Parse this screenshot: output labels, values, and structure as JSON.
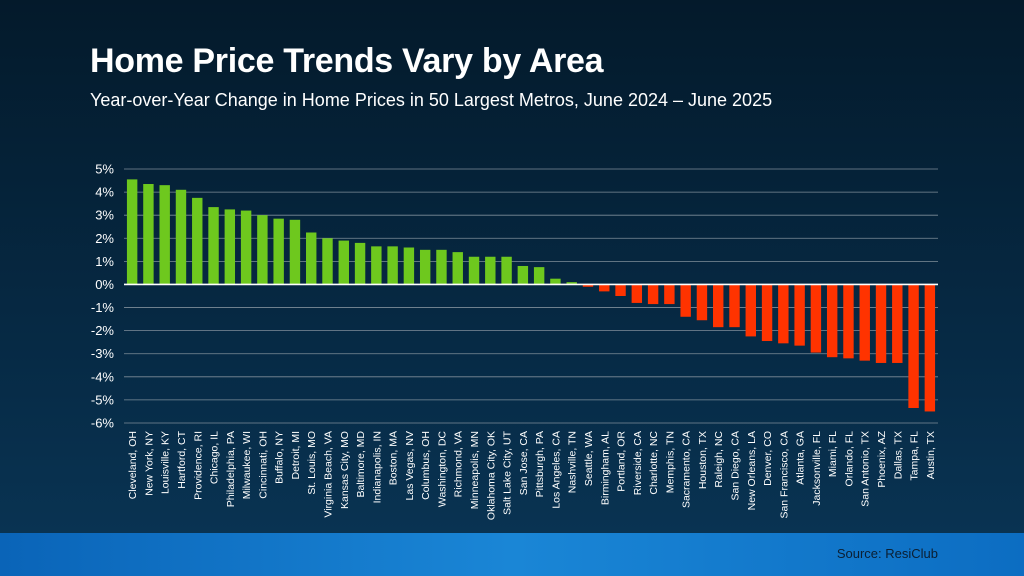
{
  "title": "Home Price Trends Vary by Area",
  "subtitle": "Year-over-Year Change in Home Prices in 50 Largest Metros, June 2024 – June 2025",
  "source": "Source: ResiClub",
  "colors": {
    "positive": "#6ec81e",
    "negative": "#ff3300",
    "grid": "#7e8d99",
    "zero_line": "#ffffff"
  },
  "chart_data": {
    "type": "bar",
    "title": "",
    "xlabel": "",
    "ylabel": "",
    "ylim": [
      -6,
      5
    ],
    "yticks": [
      5,
      4,
      3,
      2,
      1,
      0,
      -1,
      -2,
      -3,
      -4,
      -5,
      -6
    ],
    "ytick_labels": [
      "5%",
      "4%",
      "3%",
      "2%",
      "1%",
      "0%",
      "-1%",
      "-2%",
      "-3%",
      "-4%",
      "-5%",
      "-6%"
    ],
    "grid": true,
    "categories": [
      "Cleveland, OH",
      "New York, NY",
      "Louisville, KY",
      "Hartford, CT",
      "Providence, RI",
      "Chicago, IL",
      "Philadelphia, PA",
      "Milwaukee, WI",
      "Cincinnati, OH",
      "Buffalo, NY",
      "Detroit, MI",
      "St. Louis, MO",
      "Virginia Beach, VA",
      "Kansas City, MO",
      "Baltimore, MD",
      "Indianapolis, IN",
      "Boston, MA",
      "Las Vegas, NV",
      "Columbus, OH",
      "Washington, DC",
      "Richmond, VA",
      "Minneapolis, MN",
      "Oklahoma City, OK",
      "Salt Lake City, UT",
      "San Jose, CA",
      "Pittsburgh, PA",
      "Los Angeles, CA",
      "Nashville, TN",
      "Seattle, WA",
      "Birmingham, AL",
      "Portland, OR",
      "Riverside, CA",
      "Charlotte, NC",
      "Memphis, TN",
      "Sacramento, CA",
      "Houston, TX",
      "Raleigh, NC",
      "San Diego, CA",
      "New Orleans, LA",
      "Denver, CO",
      "San Francisco, CA",
      "Atlanta, GA",
      "Jacksonville, FL",
      "Miami, FL",
      "Orlando, FL",
      "San Antonio, TX",
      "Phoenix, AZ",
      "Dallas, TX",
      "Tampa, FL",
      "Austin, TX"
    ],
    "values": [
      4.55,
      4.35,
      4.3,
      4.1,
      3.75,
      3.35,
      3.25,
      3.2,
      3.0,
      2.85,
      2.8,
      2.25,
      2.0,
      1.9,
      1.8,
      1.65,
      1.65,
      1.6,
      1.5,
      1.5,
      1.4,
      1.2,
      1.2,
      1.2,
      0.8,
      0.75,
      0.25,
      0.1,
      -0.1,
      -0.3,
      -0.5,
      -0.8,
      -0.85,
      -0.85,
      -1.4,
      -1.55,
      -1.85,
      -1.85,
      -2.25,
      -2.45,
      -2.55,
      -2.65,
      -2.95,
      -3.15,
      -3.2,
      -3.3,
      -3.4,
      -3.4,
      -5.35,
      -5.5
    ]
  }
}
